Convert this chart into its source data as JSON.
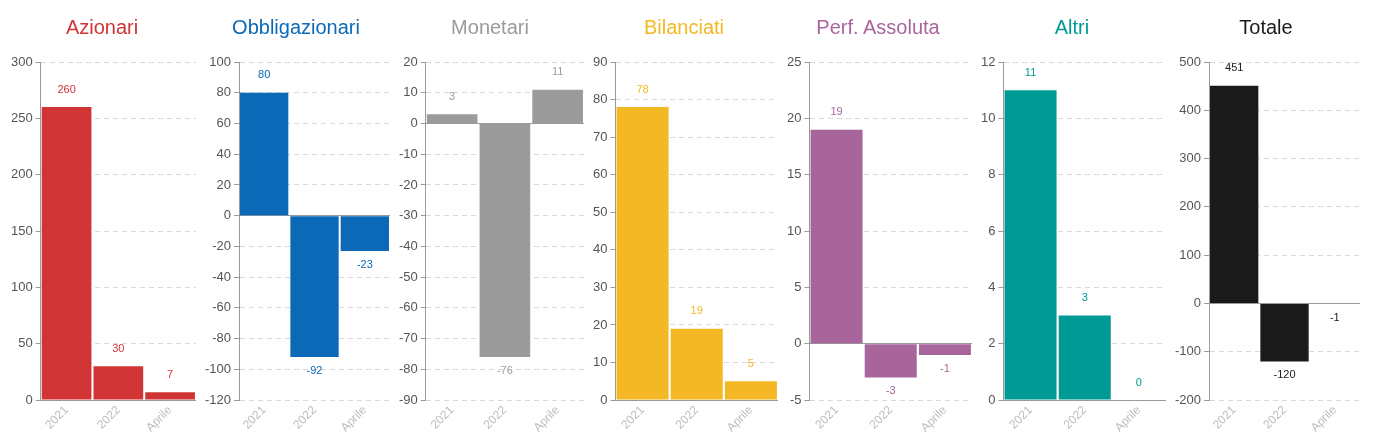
{
  "chart_data": [
    {
      "type": "bar",
      "title": "Azionari",
      "categories": [
        "2021",
        "2022",
        "Aprile"
      ],
      "values": [
        260,
        30,
        7
      ],
      "color": "#d03434",
      "ylim": [
        0,
        300
      ],
      "yticks": [
        0,
        50,
        100,
        150,
        200,
        250,
        300
      ],
      "grid": "y",
      "data_labels": true,
      "legend": false
    },
    {
      "type": "bar",
      "title": "Obbligazionari",
      "categories": [
        "2021",
        "2022",
        "Aprile"
      ],
      "values": [
        80,
        -92,
        -23
      ],
      "color": "#0b69b7",
      "ylim": [
        -120,
        100
      ],
      "yticks": [
        -120,
        -100,
        -80,
        -60,
        -40,
        -20,
        0,
        20,
        40,
        60,
        80,
        100
      ],
      "grid": "y",
      "data_labels": true,
      "legend": false
    },
    {
      "type": "bar",
      "title": "Monetari",
      "categories": [
        "2021",
        "2022",
        "Aprile"
      ],
      "values": [
        3,
        -76,
        11
      ],
      "color": "#9b9b9b",
      "ylim": [
        -90,
        20
      ],
      "yticks": [
        -90,
        -80,
        -70,
        -60,
        -50,
        -40,
        -30,
        -20,
        -10,
        0,
        10,
        20
      ],
      "grid": "y",
      "data_labels": true,
      "legend": false
    },
    {
      "type": "bar",
      "title": "Bilanciati",
      "categories": [
        "2021",
        "2022",
        "Aprile"
      ],
      "values": [
        78,
        19,
        5
      ],
      "color": "#f3b823",
      "ylim": [
        0,
        90
      ],
      "yticks": [
        0,
        10,
        20,
        30,
        40,
        50,
        60,
        70,
        80,
        90
      ],
      "grid": "y",
      "data_labels": true,
      "legend": false
    },
    {
      "type": "bar",
      "title": "Perf. Assoluta",
      "categories": [
        "2021",
        "2022",
        "Aprile"
      ],
      "values": [
        19,
        -3,
        -1
      ],
      "color": "#a8659c",
      "ylim": [
        -5,
        25
      ],
      "yticks": [
        -5,
        0,
        5,
        10,
        15,
        20,
        25
      ],
      "grid": "y",
      "data_labels": true,
      "legend": false
    },
    {
      "type": "bar",
      "title": "Altri",
      "categories": [
        "2021",
        "2022",
        "Aprile"
      ],
      "values": [
        11,
        3,
        0
      ],
      "color": "#009a95",
      "ylim": [
        0,
        12
      ],
      "yticks": [
        0,
        2,
        4,
        6,
        8,
        10,
        12
      ],
      "grid": "y",
      "data_labels": true,
      "legend": false
    },
    {
      "type": "bar",
      "title": "Totale",
      "categories": [
        "2021",
        "2022",
        "Aprile"
      ],
      "values": [
        451,
        -120,
        -1
      ],
      "color": "#1a1a1a",
      "ylim": [
        -200,
        500
      ],
      "yticks": [
        -200,
        -100,
        0,
        100,
        200,
        300,
        400,
        500
      ],
      "grid": "y",
      "data_labels": true,
      "legend": false
    }
  ]
}
